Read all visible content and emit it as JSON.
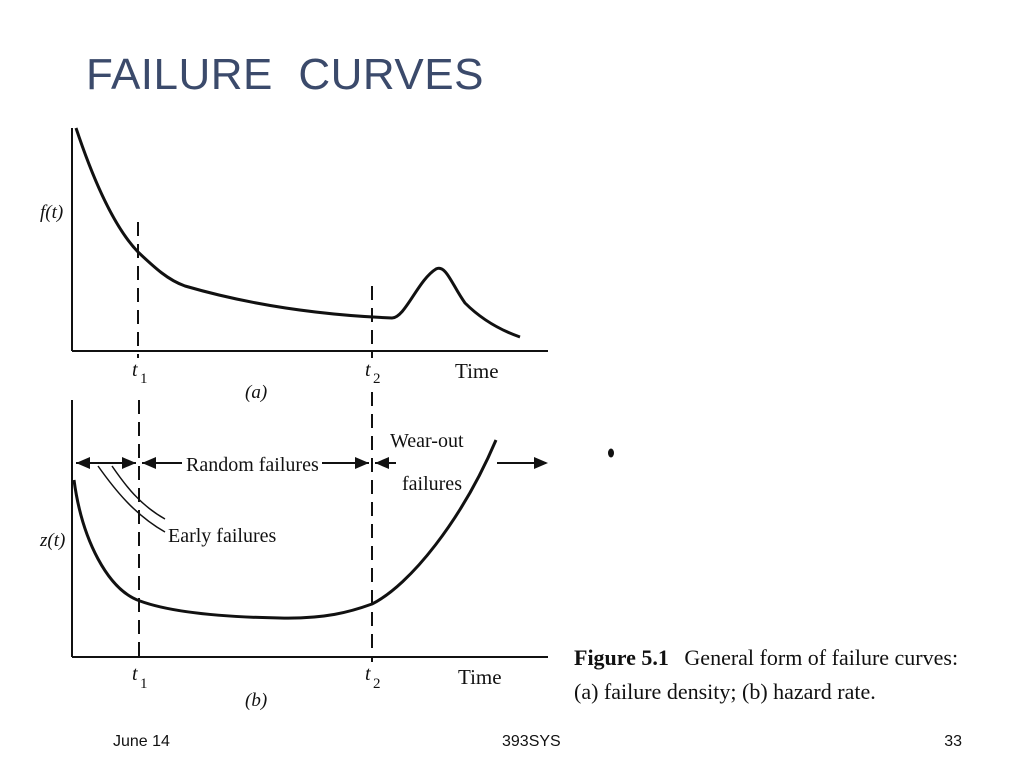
{
  "slide": {
    "title": "FAILURE  CURVES"
  },
  "figure": {
    "panel_a": {
      "y_label": "f(t)",
      "x_label": "Time",
      "t1_label": "t",
      "t1_sub": "1",
      "t2_label": "t",
      "t2_sub": "2",
      "panel_label": "(a)"
    },
    "panel_b": {
      "y_label": "z(t)",
      "x_label": "Time",
      "t1_label": "t",
      "t1_sub": "1",
      "t2_label": "t",
      "t2_sub": "2",
      "panel_label": "(b)",
      "random_failures": "Random failures",
      "early_failures": "Early failures",
      "wear_out_line1": "Wear-out",
      "wear_out_line2": "failures"
    },
    "caption": {
      "number": "Figure 5.1",
      "line1_rest": "General form of failure curves:",
      "line2": "(a) failure density; (b) hazard rate."
    }
  },
  "footer": {
    "date": "June 14",
    "course": "393SYS",
    "page": "33"
  }
}
